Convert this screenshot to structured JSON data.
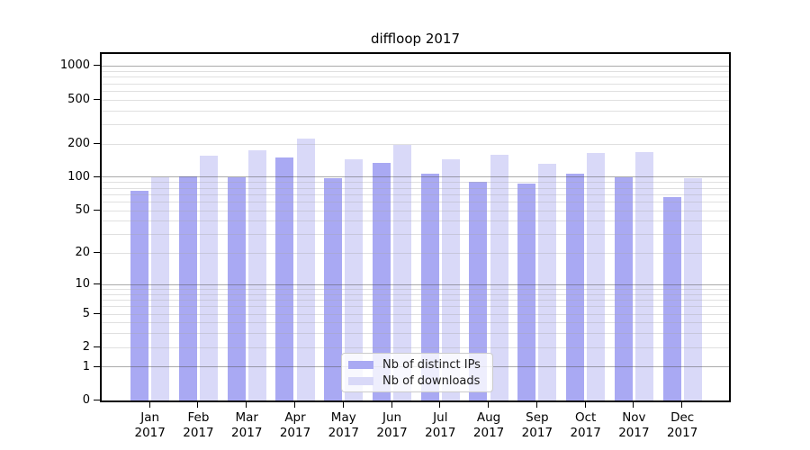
{
  "chart_data": {
    "type": "bar",
    "title": "diffloop 2017",
    "categories": [
      "Jan",
      "Feb",
      "Mar",
      "Apr",
      "May",
      "Jun",
      "Jul",
      "Aug",
      "Sep",
      "Oct",
      "Nov",
      "Dec"
    ],
    "category_year": "2017",
    "series": [
      {
        "name": "Nb of distinct IPs",
        "color": "#a9a9f3",
        "values": [
          75,
          101,
          100,
          150,
          97,
          135,
          108,
          90,
          88,
          108,
          100,
          66
        ]
      },
      {
        "name": "Nb of downloads",
        "color": "#d9d9f8",
        "values": [
          100,
          155,
          175,
          225,
          145,
          195,
          145,
          158,
          133,
          165,
          170,
          97
        ]
      }
    ],
    "yscale": "log1p",
    "y_tick_values": [
      0,
      1,
      2,
      5,
      10,
      20,
      50,
      100,
      200,
      500,
      1000
    ],
    "y_tick_labels": [
      "0",
      "1",
      "2",
      "5",
      "10",
      "20",
      "50",
      "100",
      "200",
      "500",
      "1000"
    ],
    "y_major_gridlines": [
      1,
      10,
      100,
      1000
    ],
    "y_minor_gridlines": [
      2,
      3,
      4,
      5,
      6,
      7,
      8,
      9,
      20,
      30,
      40,
      50,
      60,
      70,
      80,
      90,
      200,
      300,
      400,
      500,
      600,
      700,
      800,
      900
    ],
    "ylim": [
      0,
      1285
    ],
    "grid": true,
    "legend_position": "bottom-center",
    "xlabel": "",
    "ylabel": ""
  },
  "colors": {
    "distinct_ips_bar": "#a9a9f3",
    "downloads_bar": "#d9d9f8",
    "axis": "#000000",
    "grid_major": "#ababab",
    "grid_minor": "#dedede",
    "background": "#ffffff"
  }
}
